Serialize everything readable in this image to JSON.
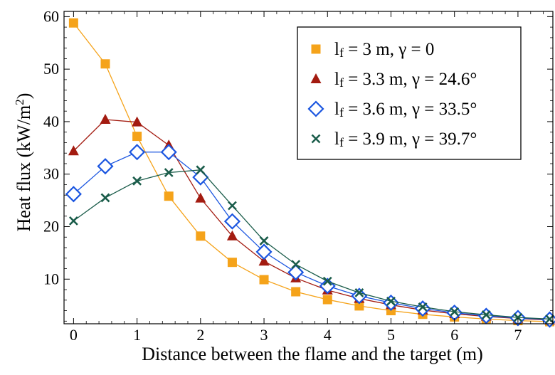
{
  "chart_data": {
    "type": "line",
    "title": "",
    "xlabel": "Distance between the flame and the target (m)",
    "ylabel_parts": [
      "Heat flux (kW/m",
      "2",
      ")"
    ],
    "xlim": [
      -0.15,
      7.55
    ],
    "ylim": [
      1.5,
      61
    ],
    "xticks": [
      0,
      1,
      2,
      3,
      4,
      5,
      6,
      7
    ],
    "yticks": [
      10,
      20,
      30,
      40,
      50,
      60
    ],
    "legend_position": "top-right",
    "x": [
      0,
      0.5,
      1,
      1.5,
      2,
      2.5,
      3,
      3.5,
      4,
      4.5,
      5,
      5.5,
      6,
      6.5,
      7,
      7.5
    ],
    "series": [
      {
        "name": "lf = 3 m, γ = 0",
        "name_parts": [
          "l",
          "f",
          " = 3 m, γ = 0"
        ],
        "color": "#f5a31a",
        "marker": "square",
        "values": [
          58.8,
          51.0,
          37.2,
          25.8,
          18.2,
          13.2,
          9.9,
          7.6,
          6.1,
          4.9,
          4.0,
          3.3,
          2.8,
          2.4,
          2.1,
          1.9
        ]
      },
      {
        "name": "lf = 3.3 m, γ = 24.6°",
        "name_parts": [
          "l",
          "f",
          " = 3.3 m, γ = 24.6°"
        ],
        "color": "#a31b10",
        "marker": "triangle",
        "values": [
          34.4,
          40.4,
          39.9,
          35.5,
          25.4,
          18.2,
          13.4,
          10.2,
          7.9,
          6.3,
          5.1,
          4.1,
          3.4,
          2.9,
          2.5,
          2.2
        ]
      },
      {
        "name": "lf = 3.6 m, γ = 33.5°",
        "name_parts": [
          "l",
          "f",
          " = 3.6 m, γ = 33.5°"
        ],
        "color": "#1a55e0",
        "marker": "diamond",
        "values": [
          26.2,
          31.5,
          34.2,
          34.2,
          29.4,
          21.0,
          15.2,
          11.3,
          8.7,
          6.8,
          5.5,
          4.4,
          3.6,
          3.0,
          2.6,
          2.3
        ]
      },
      {
        "name": "lf = 3.9 m, γ = 39.7°",
        "name_parts": [
          "l",
          "f",
          " = 3.9 m, γ = 39.7°"
        ],
        "color": "#1a5c4a",
        "marker": "x",
        "values": [
          21.1,
          25.5,
          28.7,
          30.3,
          30.8,
          24.0,
          17.3,
          12.8,
          9.6,
          7.4,
          5.8,
          4.7,
          3.8,
          3.2,
          2.7,
          2.4
        ]
      }
    ]
  }
}
